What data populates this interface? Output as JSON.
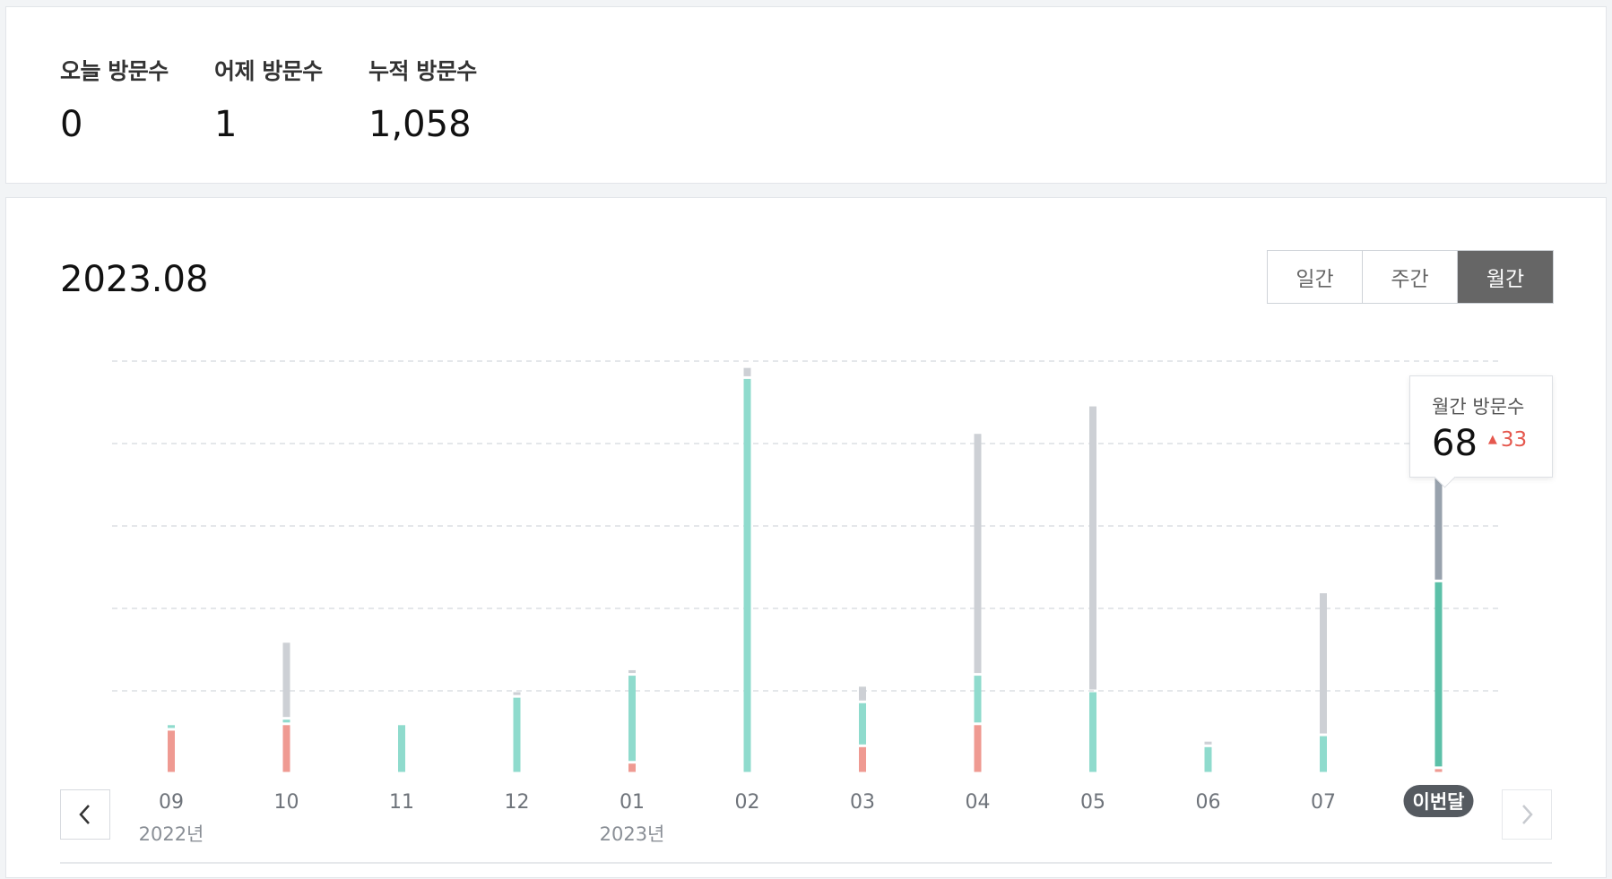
{
  "stats": [
    {
      "label": "오늘 방문수",
      "value": "0"
    },
    {
      "label": "어제 방문수",
      "value": "1"
    },
    {
      "label": "누적 방문수",
      "value": "1,058"
    }
  ],
  "period_title": "2023.08",
  "period_tabs": [
    {
      "label": "일간",
      "active": false
    },
    {
      "label": "주간",
      "active": false
    },
    {
      "label": "월간",
      "active": true
    }
  ],
  "tooltip": {
    "label": "월간 방문수",
    "value": "68",
    "delta": "33",
    "delta_color": "#e5584e"
  },
  "icons": {
    "prev": "chevron-left-icon",
    "next": "chevron-right-icon",
    "delta": "triangle-up-icon"
  },
  "colors": {
    "red": "#ef9a92",
    "teal": "#8fdbcd",
    "gray": "#cdd0d5",
    "current_teal": "#5cc0a8",
    "current_gray": "#98a2ad",
    "pill": "#555a60"
  },
  "chart_data": {
    "type": "bar",
    "stacked": true,
    "ylim": [
      0,
      75
    ],
    "grid": true,
    "categories": [
      "09",
      "10",
      "11",
      "12",
      "01",
      "02",
      "03",
      "04",
      "05",
      "06",
      "07",
      "이번달"
    ],
    "year_labels": [
      {
        "index": 0,
        "label": "2022년"
      },
      {
        "index": 4,
        "label": "2023년"
      }
    ],
    "current_index": 11,
    "series": [
      {
        "color_key": "red",
        "values": [
          8,
          9,
          0,
          0,
          2,
          0,
          5,
          9,
          0,
          0,
          0,
          1
        ]
      },
      {
        "color_key": "teal",
        "values": [
          1,
          1,
          9,
          14,
          16,
          72,
          8,
          9,
          15,
          5,
          7,
          34
        ]
      },
      {
        "color_key": "gray",
        "values": [
          0,
          14,
          0,
          1,
          1,
          2,
          3,
          44,
          52,
          1,
          26,
          33
        ]
      }
    ]
  }
}
